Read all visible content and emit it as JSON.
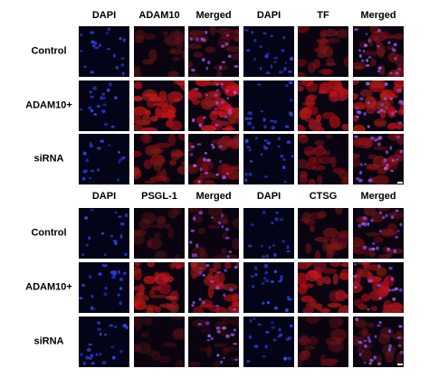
{
  "top_panel": {
    "column_headers": [
      "DAPI",
      "ADAM10",
      "Merged",
      "DAPI",
      "TF",
      "Merged"
    ],
    "row_labels": [
      "Control",
      "ADAM10+",
      "siRNA"
    ]
  },
  "bottom_panel": {
    "column_headers": [
      "DAPI",
      "PSGL-1",
      "Merged",
      "DAPI",
      "CTSG",
      "Merged"
    ],
    "row_labels": [
      "Control",
      "ADAM10+",
      "siRNA"
    ]
  },
  "colors": {
    "background": "#ffffff",
    "nucleus_blue": "#3a4cff",
    "stain_red": "#c01818",
    "tile_dark": "#05051a"
  },
  "channels": [
    "dapi",
    "red",
    "merged",
    "dapi",
    "red",
    "merged"
  ],
  "red_intensity": {
    "top": [
      [
        0.35,
        0.5
      ],
      [
        0.95,
        0.85
      ],
      [
        0.6,
        0.55
      ]
    ],
    "bottom": [
      [
        0.25,
        0.45
      ],
      [
        0.85,
        0.8
      ],
      [
        0.15,
        0.35
      ]
    ]
  }
}
